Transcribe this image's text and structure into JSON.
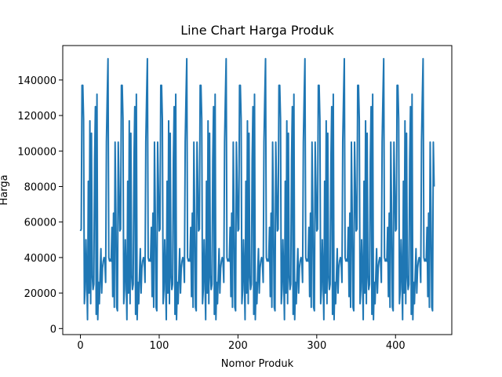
{
  "chart_data": {
    "type": "line",
    "title": "Line Chart Harga Produk",
    "xlabel": "Nomor Produk",
    "ylabel": "Harga",
    "xlim": [
      -22.45,
      471.45
    ],
    "xticks": [
      0,
      100,
      200,
      300,
      400
    ],
    "ylim": [
      -3400,
      159400
    ],
    "yticks": [
      0,
      20000,
      40000,
      60000,
      80000,
      100000,
      120000,
      140000
    ],
    "x": [
      0,
      1,
      2,
      3,
      4,
      5,
      6,
      7,
      8,
      9,
      10,
      11,
      12,
      13,
      14,
      15,
      16,
      17,
      18,
      19,
      20,
      21,
      22,
      23,
      24,
      25,
      26,
      27,
      28,
      29,
      30,
      31,
      32,
      33,
      34,
      35,
      36,
      37,
      38,
      39,
      40,
      41,
      42,
      43,
      44,
      45,
      46,
      47,
      48,
      49,
      50,
      51,
      52,
      53,
      54,
      55,
      56,
      57,
      58,
      59,
      60,
      61,
      62,
      63,
      64,
      65,
      66,
      67,
      68,
      69,
      70,
      71,
      72,
      73,
      74,
      75,
      76,
      77,
      78,
      79,
      80,
      81,
      82,
      83,
      84,
      85,
      86,
      87,
      88,
      89,
      90,
      91,
      92,
      93,
      94,
      95,
      96,
      97,
      98,
      99,
      100,
      101,
      102,
      103,
      104,
      105,
      106,
      107,
      108,
      109,
      110,
      111,
      112,
      113,
      114,
      115,
      116,
      117,
      118,
      119,
      120,
      121,
      122,
      123,
      124,
      125,
      126,
      127,
      128,
      129,
      130,
      131,
      132,
      133,
      134,
      135,
      136,
      137,
      138,
      139,
      140,
      141,
      142,
      143,
      144,
      145,
      146,
      147,
      148,
      149,
      150,
      151,
      152,
      153,
      154,
      155,
      156,
      157,
      158,
      159,
      160,
      161,
      162,
      163,
      164,
      165,
      166,
      167,
      168,
      169,
      170,
      171,
      172,
      173,
      174,
      175,
      176,
      177,
      178,
      179,
      180,
      181,
      182,
      183,
      184,
      185,
      186,
      187,
      188,
      189,
      190,
      191,
      192,
      193,
      194,
      195,
      196,
      197,
      198,
      199,
      200,
      201,
      202,
      203,
      204,
      205,
      206,
      207,
      208,
      209,
      210,
      211,
      212,
      213,
      214,
      215,
      216,
      217,
      218,
      219,
      220,
      221,
      222,
      223,
      224,
      225,
      226,
      227,
      228,
      229,
      230,
      231,
      232,
      233,
      234,
      235,
      236,
      237,
      238,
      239,
      240,
      241,
      242,
      243,
      244,
      245,
      246,
      247,
      248,
      249,
      250,
      251,
      252,
      253,
      254,
      255,
      256,
      257,
      258,
      259,
      260,
      261,
      262,
      263,
      264,
      265,
      266,
      267,
      268,
      269,
      270,
      271,
      272,
      273,
      274,
      275,
      276,
      277,
      278,
      279,
      280,
      281,
      282,
      283,
      284,
      285,
      286,
      287,
      288,
      289,
      290,
      291,
      292,
      293,
      294,
      295,
      296,
      297,
      298,
      299,
      300,
      301,
      302,
      303,
      304,
      305,
      306,
      307,
      308,
      309,
      310,
      311,
      312,
      313,
      314,
      315,
      316,
      317,
      318,
      319,
      320,
      321,
      322,
      323,
      324,
      325,
      326,
      327,
      328,
      329,
      330,
      331,
      332,
      333,
      334,
      335,
      336,
      337,
      338,
      339,
      340,
      341,
      342,
      343,
      344,
      345,
      346,
      347,
      348,
      349,
      350,
      351,
      352,
      353,
      354,
      355,
      356,
      357,
      358,
      359,
      360,
      361,
      362,
      363,
      364,
      365,
      366,
      367,
      368,
      369,
      370,
      371,
      372,
      373,
      374,
      375,
      376,
      377,
      378,
      379,
      380,
      381,
      382,
      383,
      384,
      385,
      386,
      387,
      388,
      389,
      390,
      391,
      392,
      393,
      394,
      395,
      396,
      397,
      398,
      399,
      400,
      401,
      402,
      403,
      404,
      405,
      406,
      407,
      408,
      409,
      410,
      411,
      412,
      413,
      414,
      415,
      416,
      417,
      418,
      419,
      420,
      421,
      422,
      423,
      424,
      425,
      426,
      427,
      428,
      429,
      430,
      431,
      432,
      433,
      434,
      435,
      436,
      437,
      438,
      439,
      440,
      441,
      442,
      443,
      444,
      445,
      446,
      447,
      448,
      449
    ],
    "series": [
      {
        "color": "#1f77b4",
        "values": [
          55000,
          56000,
          137000,
          137000,
          118000,
          14000,
          22000,
          50000,
          30000,
          5000,
          83000,
          20000,
          117000,
          14000,
          110000,
          30000,
          22000,
          25000,
          95000,
          125000,
          8000,
          132000,
          5000,
          26000,
          14000,
          30000,
          45000,
          20000,
          34000,
          38000,
          40000,
          38000,
          26000,
          105000,
          130000,
          152000,
          40000,
          38000,
          39000,
          38000,
          57000,
          18000,
          65000,
          12000,
          105000,
          65000,
          12000,
          10000,
          105000,
          80000,
          55000,
          56000,
          137000,
          137000,
          118000,
          14000,
          22000,
          50000,
          30000,
          5000,
          83000,
          20000,
          117000,
          14000,
          110000,
          30000,
          22000,
          25000,
          95000,
          125000,
          8000,
          132000,
          5000,
          26000,
          14000,
          30000,
          45000,
          20000,
          34000,
          38000,
          40000,
          38000,
          26000,
          105000,
          130000,
          152000,
          40000,
          38000,
          39000,
          38000,
          57000,
          18000,
          65000,
          12000,
          105000,
          65000,
          12000,
          10000,
          105000,
          80000,
          55000,
          56000,
          137000,
          137000,
          118000,
          14000,
          22000,
          50000,
          30000,
          5000,
          83000,
          20000,
          117000,
          14000,
          110000,
          30000,
          22000,
          25000,
          95000,
          125000,
          8000,
          132000,
          5000,
          26000,
          14000,
          30000,
          45000,
          20000,
          34000,
          38000,
          40000,
          38000,
          26000,
          105000,
          130000,
          152000,
          40000,
          38000,
          39000,
          38000,
          57000,
          18000,
          65000,
          12000,
          105000,
          65000,
          12000,
          10000,
          105000,
          80000,
          55000,
          56000,
          137000,
          137000,
          118000,
          14000,
          22000,
          50000,
          30000,
          5000,
          83000,
          20000,
          117000,
          14000,
          110000,
          30000,
          22000,
          25000,
          95000,
          125000,
          8000,
          132000,
          5000,
          26000,
          14000,
          30000,
          45000,
          20000,
          34000,
          38000,
          40000,
          38000,
          26000,
          105000,
          130000,
          152000,
          40000,
          38000,
          39000,
          38000,
          57000,
          18000,
          65000,
          12000,
          105000,
          65000,
          12000,
          10000,
          105000,
          80000,
          55000,
          56000,
          137000,
          137000,
          118000,
          14000,
          22000,
          50000,
          30000,
          5000,
          83000,
          20000,
          117000,
          14000,
          110000,
          30000,
          22000,
          25000,
          95000,
          125000,
          8000,
          132000,
          5000,
          26000,
          14000,
          30000,
          45000,
          20000,
          34000,
          38000,
          40000,
          38000,
          26000,
          105000,
          130000,
          152000,
          40000,
          38000,
          39000,
          38000,
          57000,
          18000,
          65000,
          12000,
          105000,
          65000,
          12000,
          10000,
          105000,
          80000,
          55000,
          56000,
          137000,
          137000,
          118000,
          14000,
          22000,
          50000,
          30000,
          5000,
          83000,
          20000,
          117000,
          14000,
          110000,
          30000,
          22000,
          25000,
          95000,
          125000,
          8000,
          132000,
          5000,
          26000,
          14000,
          30000,
          45000,
          20000,
          34000,
          38000,
          40000,
          38000,
          26000,
          105000,
          130000,
          152000,
          40000,
          38000,
          39000,
          38000,
          57000,
          18000,
          65000,
          12000,
          105000,
          65000,
          12000,
          10000,
          105000,
          80000,
          55000,
          56000,
          137000,
          137000,
          118000,
          14000,
          22000,
          50000,
          30000,
          5000,
          83000,
          20000,
          117000,
          14000,
          110000,
          30000,
          22000,
          25000,
          95000,
          125000,
          8000,
          132000,
          5000,
          26000,
          14000,
          30000,
          45000,
          20000,
          34000,
          38000,
          40000,
          38000,
          26000,
          105000,
          130000,
          152000,
          40000,
          38000,
          39000,
          38000,
          57000,
          18000,
          65000,
          12000,
          105000,
          65000,
          12000,
          10000,
          105000,
          80000,
          55000,
          56000,
          137000,
          137000,
          118000,
          14000,
          22000,
          50000,
          30000,
          5000,
          83000,
          20000,
          117000,
          14000,
          110000,
          30000,
          22000,
          25000,
          95000,
          125000,
          8000,
          132000,
          5000,
          26000,
          14000,
          30000,
          45000,
          20000,
          34000,
          38000,
          40000,
          38000,
          26000,
          105000,
          130000,
          152000,
          40000,
          38000,
          39000,
          38000,
          57000,
          18000,
          65000,
          12000,
          105000,
          65000,
          12000,
          10000,
          105000,
          80000,
          55000,
          56000,
          137000,
          137000,
          118000,
          14000,
          22000,
          50000,
          30000,
          5000,
          83000,
          20000,
          117000,
          14000,
          110000,
          30000,
          22000,
          25000,
          95000,
          125000,
          8000,
          132000,
          5000,
          26000,
          14000,
          30000,
          45000,
          20000,
          34000,
          38000,
          40000,
          38000,
          26000,
          105000,
          130000,
          152000,
          40000,
          38000,
          39000,
          38000,
          57000,
          18000,
          65000,
          12000,
          105000,
          65000,
          12000,
          10000,
          105000,
          80000
        ]
      }
    ]
  }
}
